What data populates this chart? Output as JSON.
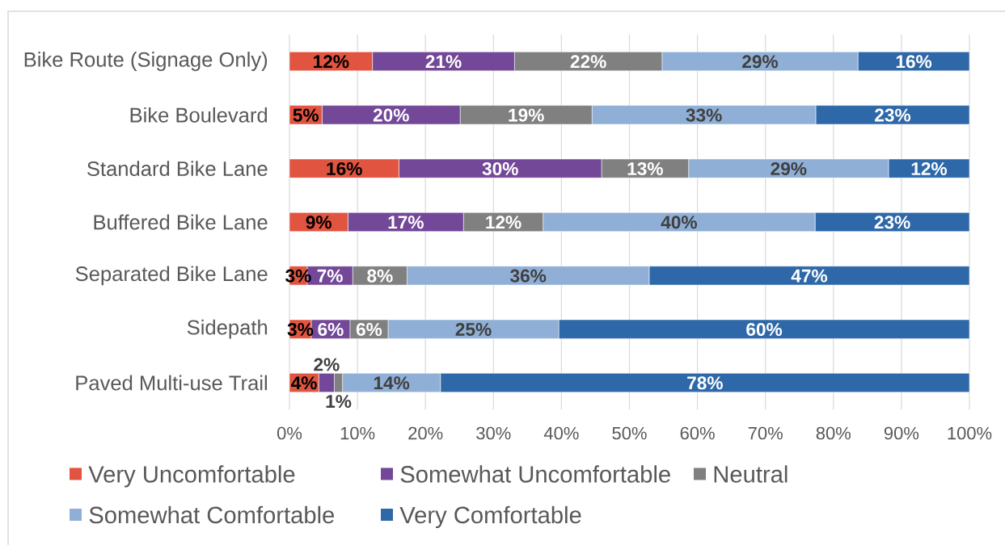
{
  "chart_data": {
    "type": "bar",
    "orientation": "horizontal",
    "stacked": true,
    "categories": [
      "Bike Route (Signage Only)",
      "Bike Boulevard",
      "Standard Bike Lane",
      "Buffered Bike Lane",
      "Separated Bike Lane",
      "Sidepath",
      "Paved Multi-use Trail"
    ],
    "series": [
      {
        "name": "Very Uncomfortable",
        "color": "#E15440",
        "values": [
          12.2,
          4.8,
          16.1,
          8.6,
          2.6,
          3.2,
          4.3
        ],
        "value_labels": [
          "12%",
          "5%",
          "16%",
          "9%",
          "3%",
          "3%",
          "4%"
        ]
      },
      {
        "name": "Somewhat Uncomfortable",
        "color": "#734898",
        "values": [
          20.9,
          20.3,
          29.8,
          17.0,
          6.7,
          5.7,
          2.3
        ],
        "value_labels": [
          "21%",
          "20%",
          "30%",
          "17%",
          "7%",
          "6%",
          "2%"
        ]
      },
      {
        "name": "Neutral",
        "color": "#808080",
        "values": [
          21.7,
          19.4,
          12.8,
          11.7,
          8.0,
          5.6,
          1.2
        ],
        "value_labels": [
          "22%",
          "19%",
          "13%",
          "12%",
          "8%",
          "6%",
          "1%"
        ]
      },
      {
        "name": "Somewhat Comfortable",
        "color": "#8FAFD6",
        "values": [
          28.8,
          32.9,
          29.4,
          40.0,
          35.6,
          25.1,
          14.4
        ],
        "value_labels": [
          "29%",
          "33%",
          "29%",
          "40%",
          "36%",
          "25%",
          "14%"
        ]
      },
      {
        "name": "Very Comfortable",
        "color": "#2E68A8",
        "values": [
          16.4,
          22.6,
          11.9,
          22.7,
          47.1,
          60.4,
          77.8
        ],
        "value_labels": [
          "16%",
          "23%",
          "12%",
          "23%",
          "47%",
          "60%",
          "78%"
        ]
      }
    ],
    "xlim": [
      0,
      100
    ],
    "xticks": [
      {
        "value": 0,
        "label": "0%"
      },
      {
        "value": 10,
        "label": "10%"
      },
      {
        "value": 20,
        "label": "20%"
      },
      {
        "value": 30,
        "label": "30%"
      },
      {
        "value": 40,
        "label": "40%"
      },
      {
        "value": 50,
        "label": "50%"
      },
      {
        "value": 60,
        "label": "60%"
      },
      {
        "value": 70,
        "label": "70%"
      },
      {
        "value": 80,
        "label": "80%"
      },
      {
        "value": 90,
        "label": "90%"
      },
      {
        "value": 100,
        "label": "100%"
      }
    ],
    "grid": "x",
    "legend": "bottom"
  }
}
